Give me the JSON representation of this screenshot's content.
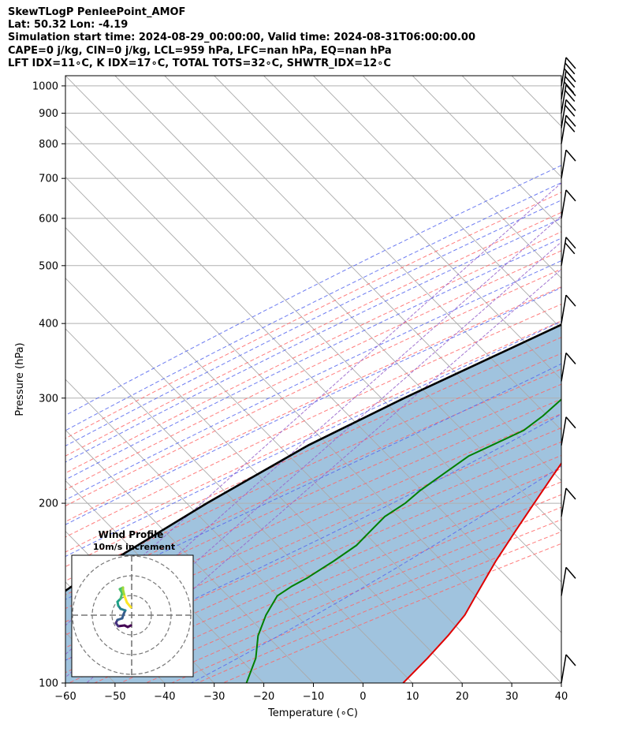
{
  "title_lines": [
    "SkewTLogP PenleePoint_AMOF",
    "Lat: 50.32   Lon: -4.19",
    "Simulation start time: 2024-08-29_00:00:00, Valid time: 2024-08-31T06:00:00.00",
    "CAPE=0 j/kg, CIN=0 j/kg, LCL=959 hPa, LFC=nan hPa, EQ=nan hPa",
    "LFT IDX=11∘C, K IDX=17∘C, TOTAL TOTS=32∘C, SHWTR_IDX=12∘C"
  ],
  "chart_data": {
    "type": "line",
    "subtype": "skew-T log-P diagram",
    "xlabel": "Temperature (∘C)",
    "ylabel": "Pressure (hPa)",
    "xlim": [
      -60,
      40
    ],
    "ylim": [
      1040,
      100
    ],
    "y_scale": "log",
    "x_ticks": [
      -60,
      -50,
      -40,
      -30,
      -20,
      -10,
      0,
      10,
      20,
      30,
      40
    ],
    "y_ticks": [
      1000,
      900,
      800,
      700,
      600,
      500,
      400,
      300,
      200,
      100
    ],
    "grid": true,
    "colors": {
      "temperature": "#e00000",
      "dewpoint": "#008000",
      "parcel": "#000000",
      "cape_shade": "#8fb8d8",
      "dry_adiabats": "#ff6666",
      "moist_adiabats": "#5566ee",
      "mixing_ratio": "#9966cc",
      "isotherms": "#aaaaaa"
    },
    "series": [
      {
        "key": "temperature",
        "points": [
          [
            1000,
            16
          ],
          [
            990,
            14.8
          ],
          [
            970,
            15
          ],
          [
            950,
            14.5
          ],
          [
            920,
            14.5
          ],
          [
            880,
            15
          ],
          [
            840,
            15.3
          ],
          [
            800,
            15.2
          ],
          [
            760,
            15.1
          ],
          [
            740,
            15
          ],
          [
            720,
            14.5
          ],
          [
            700,
            14
          ],
          [
            660,
            14
          ],
          [
            640,
            14.2
          ],
          [
            610,
            13.8
          ],
          [
            580,
            12.7
          ],
          [
            550,
            11.5
          ],
          [
            500,
            9.5
          ],
          [
            460,
            7.6
          ],
          [
            420,
            6.9
          ],
          [
            390,
            6.2
          ],
          [
            360,
            5.1
          ],
          [
            340,
            3.3
          ],
          [
            300,
            0.1
          ],
          [
            260,
            -3.3
          ],
          [
            235,
            -3.5
          ],
          [
            220,
            -2.5
          ],
          [
            200,
            -1
          ],
          [
            180,
            0.7
          ],
          [
            160,
            2.7
          ],
          [
            140,
            5.5
          ],
          [
            130,
            7.1
          ],
          [
            120,
            7.8
          ],
          [
            110,
            8.1
          ],
          [
            100,
            8.1
          ]
        ]
      },
      {
        "key": "dewpoint",
        "points": [
          [
            1000,
            10.5
          ],
          [
            990,
            11
          ],
          [
            975,
            11.5
          ],
          [
            965,
            12
          ],
          [
            950,
            12.8
          ],
          [
            930,
            12.7
          ],
          [
            920,
            11
          ],
          [
            900,
            6
          ],
          [
            870,
            0
          ],
          [
            840,
            0
          ],
          [
            820,
            1
          ],
          [
            800,
            4
          ],
          [
            770,
            7
          ],
          [
            740,
            9
          ],
          [
            700,
            11.5
          ],
          [
            680,
            11
          ],
          [
            650,
            8
          ],
          [
            630,
            5
          ],
          [
            600,
            2
          ],
          [
            580,
            2.8
          ],
          [
            560,
            4.3
          ],
          [
            540,
            4.5
          ],
          [
            500,
            4.5
          ],
          [
            460,
            2.5
          ],
          [
            440,
            -3
          ],
          [
            420,
            -6.5
          ],
          [
            400,
            -2.5
          ],
          [
            380,
            -4.5
          ],
          [
            360,
            -9
          ],
          [
            340,
            -15
          ],
          [
            325,
            -16.5
          ],
          [
            300,
            -16
          ],
          [
            280,
            -16.5
          ],
          [
            265,
            -17.5
          ],
          [
            250,
            -21
          ],
          [
            240,
            -23.5
          ],
          [
            225,
            -25
          ],
          [
            210,
            -26.5
          ],
          [
            200,
            -27
          ],
          [
            190,
            -28.5
          ],
          [
            180,
            -28.5
          ],
          [
            170,
            -28.5
          ],
          [
            160,
            -30
          ],
          [
            150,
            -32
          ],
          [
            145,
            -33.5
          ],
          [
            140,
            -34.5
          ],
          [
            130,
            -33
          ],
          [
            120,
            -30.5
          ],
          [
            110,
            -26.5
          ],
          [
            100,
            -23.5
          ]
        ]
      },
      {
        "key": "parcel",
        "points": [
          [
            1000,
            12.5
          ],
          [
            990,
            11.7
          ],
          [
            980,
            11.2
          ],
          [
            970,
            11.9
          ],
          [
            960,
            11
          ],
          [
            950,
            10.5
          ],
          [
            850,
            5.8
          ],
          [
            700,
            -1.6
          ],
          [
            600,
            -8.5
          ],
          [
            500,
            -17.5
          ],
          [
            400,
            -30.5
          ],
          [
            300,
            -48
          ],
          [
            250,
            -58
          ],
          [
            200,
            -67
          ],
          [
            150,
            -77
          ],
          [
            100,
            -87
          ]
        ]
      }
    ],
    "wind_barbs": {
      "levels": [
        100,
        140,
        190,
        250,
        320,
        400,
        500,
        600,
        700,
        800,
        850,
        900,
        950,
        1000
      ],
      "barbs": [
        {
          "flags": "one long barb"
        },
        {
          "flags": "one long barb"
        },
        {
          "flags": "one long barb"
        },
        {
          "flags": "one long barb"
        },
        {
          "flags": "one long barb"
        },
        {
          "flags": "one long barb"
        },
        {
          "flags": "two long barbs"
        },
        {
          "flags": "one long barb"
        },
        {
          "flags": "one long barb"
        },
        {
          "flags": "two long barbs"
        },
        {
          "flags": "two long barbs"
        },
        {
          "flags": "two long barbs"
        },
        {
          "flags": "three long barbs"
        },
        {
          "flags": "three long barbs"
        }
      ]
    },
    "inset": {
      "title": "Wind Profile",
      "subtitle": "10m/s increment"
    }
  }
}
